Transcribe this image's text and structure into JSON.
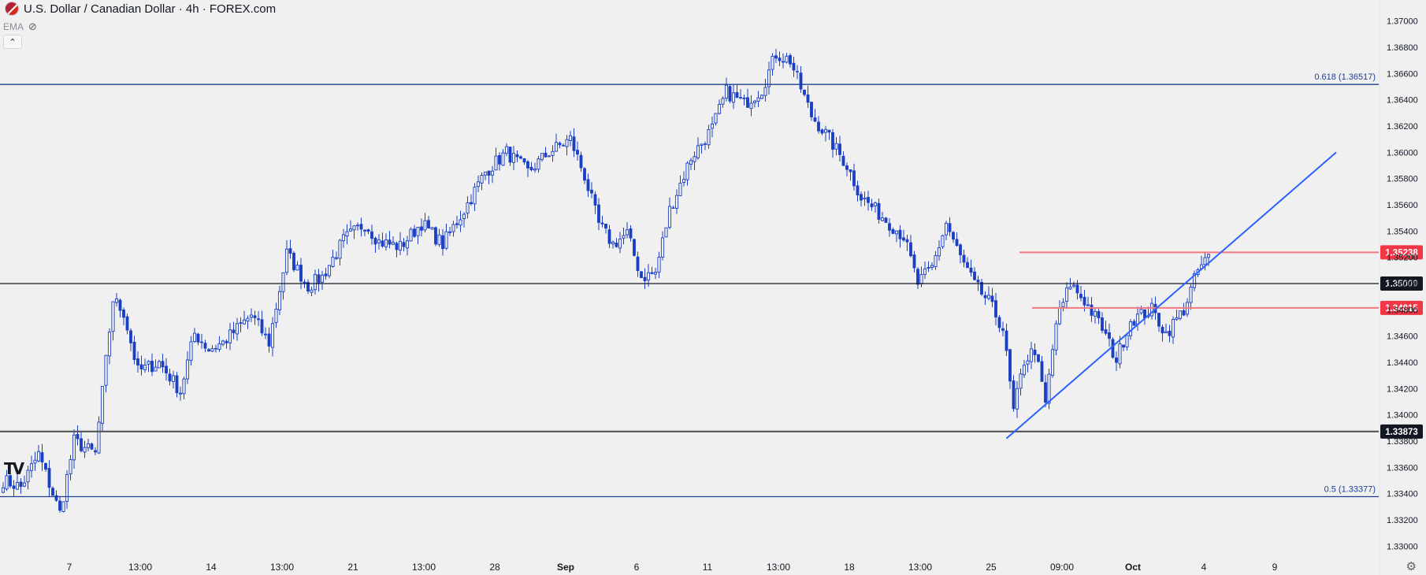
{
  "header": {
    "symbol_title": "U.S. Dollar / Canadian Dollar · 4h · FOREX.com",
    "indicator_label": "EMA",
    "flag_icon": "usd-cad-flag-icon",
    "visibility_icon": "eye-hidden-icon",
    "collapse_icon": "chevron-up-icon"
  },
  "brand": {
    "logo": "TV"
  },
  "colors": {
    "background": "#f0f0f0",
    "candle": "#1a3fc4",
    "fib_line": "#1c3f94",
    "trendline": "#2962ff",
    "support_line": "#555555",
    "level_line": "#131722",
    "resistance_line": "#f4787f",
    "resistance_label": "#f23645",
    "axis_text": "#131722"
  },
  "chart_data": {
    "type": "candlestick",
    "title": "U.S. Dollar / Canadian Dollar · 4h · FOREX.com",
    "ylim": [
      1.3296,
      1.3704
    ],
    "y_ticks": [
      "1.37000",
      "1.36800",
      "1.36600",
      "1.36400",
      "1.36200",
      "1.36000",
      "1.35800",
      "1.35600",
      "1.35400",
      "1.35200",
      "1.35000",
      "1.34800",
      "1.34600",
      "1.34400",
      "1.34200",
      "1.34000",
      "1.33800",
      "1.33600",
      "1.33400",
      "1.33200",
      "1.33000"
    ],
    "x_ticks": [
      "7",
      "13:00",
      "14",
      "13:00",
      "21",
      "13:00",
      "28",
      "Sep",
      "6",
      "11",
      "13:00",
      "18",
      "13:00",
      "25",
      "09:00",
      "Oct",
      "4",
      "9"
    ],
    "x_tick_bold": [
      "Sep",
      "Oct"
    ],
    "grid": false,
    "price_anchors": [
      [
        0,
        1.335
      ],
      [
        5,
        1.3345
      ],
      [
        10,
        1.337
      ],
      [
        16,
        1.3325
      ],
      [
        20,
        1.338
      ],
      [
        26,
        1.337
      ],
      [
        31,
        1.3488
      ],
      [
        34,
        1.3478
      ],
      [
        38,
        1.3433
      ],
      [
        44,
        1.344
      ],
      [
        50,
        1.3418
      ],
      [
        54,
        1.3462
      ],
      [
        58,
        1.345
      ],
      [
        62,
        1.3455
      ],
      [
        70,
        1.3476
      ],
      [
        75,
        1.3455
      ],
      [
        80,
        1.3523
      ],
      [
        86,
        1.3498
      ],
      [
        90,
        1.3505
      ],
      [
        96,
        1.3533
      ],
      [
        102,
        1.3546
      ],
      [
        106,
        1.3532
      ],
      [
        112,
        1.3528
      ],
      [
        118,
        1.3546
      ],
      [
        124,
        1.353
      ],
      [
        130,
        1.3556
      ],
      [
        136,
        1.3585
      ],
      [
        142,
        1.36
      ],
      [
        148,
        1.3585
      ],
      [
        154,
        1.36
      ],
      [
        160,
        1.361
      ],
      [
        164,
        1.3582
      ],
      [
        168,
        1.3545
      ],
      [
        172,
        1.353
      ],
      [
        176,
        1.3538
      ],
      [
        180,
        1.3505
      ],
      [
        184,
        1.3508
      ],
      [
        188,
        1.3556
      ],
      [
        194,
        1.3596
      ],
      [
        200,
        1.3618
      ],
      [
        204,
        1.3646
      ],
      [
        209,
        1.3637
      ],
      [
        214,
        1.3648
      ],
      [
        218,
        1.3675
      ],
      [
        222,
        1.367
      ],
      [
        228,
        1.3628
      ],
      [
        232,
        1.3614
      ],
      [
        238,
        1.359
      ],
      [
        242,
        1.3566
      ],
      [
        248,
        1.3551
      ],
      [
        254,
        1.3536
      ],
      [
        258,
        1.35
      ],
      [
        262,
        1.3512
      ],
      [
        266,
        1.3546
      ],
      [
        270,
        1.352
      ],
      [
        274,
        1.3499
      ],
      [
        278,
        1.3486
      ],
      [
        282,
        1.3466
      ],
      [
        285,
        1.3402
      ],
      [
        288,
        1.3441
      ],
      [
        291,
        1.345
      ],
      [
        294,
        1.3408
      ],
      [
        297,
        1.347
      ],
      [
        301,
        1.35
      ],
      [
        305,
        1.3487
      ],
      [
        310,
        1.3466
      ],
      [
        314,
        1.3442
      ],
      [
        318,
        1.3472
      ],
      [
        324,
        1.348
      ],
      [
        328,
        1.3462
      ],
      [
        333,
        1.348
      ],
      [
        337,
        1.351
      ],
      [
        340,
        1.352
      ]
    ],
    "levels": [
      {
        "label": "0.618 (1.36517)",
        "value": 1.36517,
        "style": "fib"
      },
      {
        "label": "0.5 (1.33377)",
        "value": 1.33377,
        "style": "fib"
      },
      {
        "label": "1.35238",
        "value": 1.35238,
        "style": "resistance"
      },
      {
        "label": "1.35000",
        "value": 1.35,
        "style": "level"
      },
      {
        "label": "1.34815",
        "value": 1.34815,
        "style": "resistance"
      },
      {
        "label": "1.33873",
        "value": 1.33873,
        "style": "support"
      }
    ],
    "trendline": {
      "from": [
        283,
        1.3382
      ],
      "to": [
        376,
        1.36
      ]
    }
  }
}
